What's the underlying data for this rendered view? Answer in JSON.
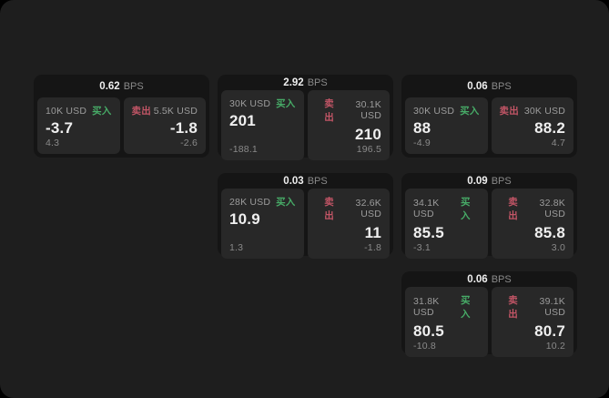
{
  "labels": {
    "bps_suffix": "BPS",
    "buy": "买入",
    "sell": "卖出"
  },
  "colors": {
    "page_bg": "#1e1e1e",
    "card_bg": "#151515",
    "panel_bg": "#282828",
    "buy_green": "#47ab67",
    "sell_red": "#c25566",
    "value_bright": "#efefef",
    "text_muted": "#9c9c9c",
    "text_dim": "#8a8a8a"
  },
  "cards": [
    {
      "bps": "0.62",
      "buy": {
        "amount": "10K USD",
        "value": "-3.7",
        "delta": "4.3"
      },
      "sell": {
        "amount": "5.5K USD",
        "value": "-1.8",
        "delta": "-2.6"
      }
    },
    {
      "bps": "2.92",
      "buy": {
        "amount": "30K USD",
        "value": "201",
        "delta": "-188.1"
      },
      "sell": {
        "amount": "30.1K USD",
        "value": "210",
        "delta": "196.5"
      }
    },
    {
      "bps": "0.06",
      "buy": {
        "amount": "30K USD",
        "value": "88",
        "delta": "-4.9"
      },
      "sell": {
        "amount": "30K USD",
        "value": "88.2",
        "delta": "4.7"
      }
    },
    {
      "bps": "0.03",
      "buy": {
        "amount": "28K USD",
        "value": "10.9",
        "delta": "1.3"
      },
      "sell": {
        "amount": "32.6K USD",
        "value": "11",
        "delta": "-1.8"
      }
    },
    {
      "bps": "0.09",
      "buy": {
        "amount": "34.1K USD",
        "value": "85.5",
        "delta": "-3.1"
      },
      "sell": {
        "amount": "32.8K USD",
        "value": "85.8",
        "delta": "3.0"
      }
    },
    {
      "bps": "0.06",
      "buy": {
        "amount": "31.8K USD",
        "value": "80.5",
        "delta": "-10.8"
      },
      "sell": {
        "amount": "39.1K USD",
        "value": "80.7",
        "delta": "10.2"
      }
    }
  ]
}
